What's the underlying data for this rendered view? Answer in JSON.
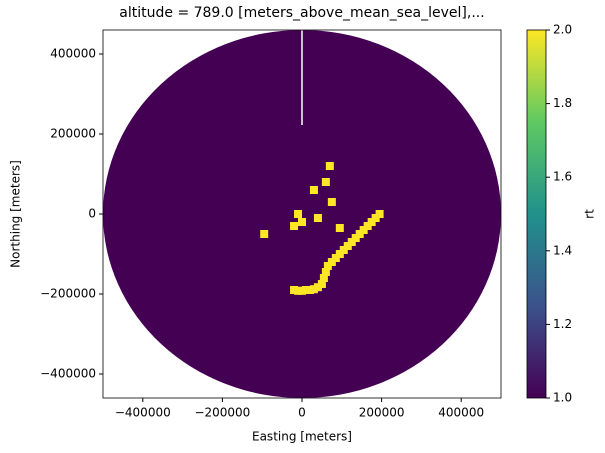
{
  "chart_data": {
    "type": "mesh",
    "title": "altitude = 789.0 [meters_above_mean_sea_level],...",
    "xlabel": "Easting [meters]",
    "ylabel": "Northing [meters]",
    "xlim": [
      -500000,
      500000
    ],
    "ylim": [
      -460000,
      460000
    ],
    "xticks": [
      {
        "value": -400000,
        "label": "−400000"
      },
      {
        "value": -200000,
        "label": "−200000"
      },
      0,
      200000,
      400000
    ],
    "yticks": [
      {
        "value": -400000,
        "label": "−400000"
      },
      {
        "value": -200000,
        "label": "−200000"
      },
      0,
      200000,
      400000
    ],
    "background_value": 1,
    "echoes": {
      "x": [
        -20000,
        -10000,
        0,
        10000,
        20000,
        30000,
        40000,
        50000,
        55000,
        60000,
        65000,
        75000,
        85000,
        95000,
        105000,
        115000,
        125000,
        135000,
        145000,
        155000,
        165000,
        175000,
        185000,
        195000,
        -95000,
        -10000,
        0,
        -20000,
        40000,
        75000,
        95000,
        70000,
        30000,
        60000
      ],
      "y": [
        -190000,
        -192000,
        -192000,
        -190000,
        -190000,
        -188000,
        -183000,
        -175000,
        -160000,
        -145000,
        -130000,
        -120000,
        -110000,
        -100000,
        -90000,
        -80000,
        -70000,
        -60000,
        -50000,
        -40000,
        -30000,
        -20000,
        -10000,
        0,
        -50000,
        0,
        -20000,
        -30000,
        -10000,
        30000,
        -35000,
        120000,
        60000,
        80000
      ],
      "values": [
        2,
        2,
        2,
        2,
        2,
        2,
        2,
        2,
        2,
        2,
        2,
        2,
        2,
        2,
        2,
        2,
        2,
        2,
        2,
        2,
        2,
        2,
        2,
        2,
        2,
        2,
        2,
        2,
        2,
        2,
        2,
        2,
        2,
        2
      ]
    },
    "colorbar_label": "rt",
    "clim": [
      1,
      2
    ],
    "cticks": [
      {
        "value": 1,
        "label": "1.0"
      },
      {
        "value": 1.2,
        "label": "1.2"
      },
      {
        "value": 1.4,
        "label": "1.4"
      },
      {
        "value": 1.6,
        "label": "1.6"
      },
      {
        "value": 1.8,
        "label": "1.8"
      },
      {
        "value": 2,
        "label": "2.0"
      }
    ],
    "colormap": [
      "#440154",
      "#3b528b",
      "#21918c",
      "#5ec962",
      "#fde725"
    ]
  }
}
